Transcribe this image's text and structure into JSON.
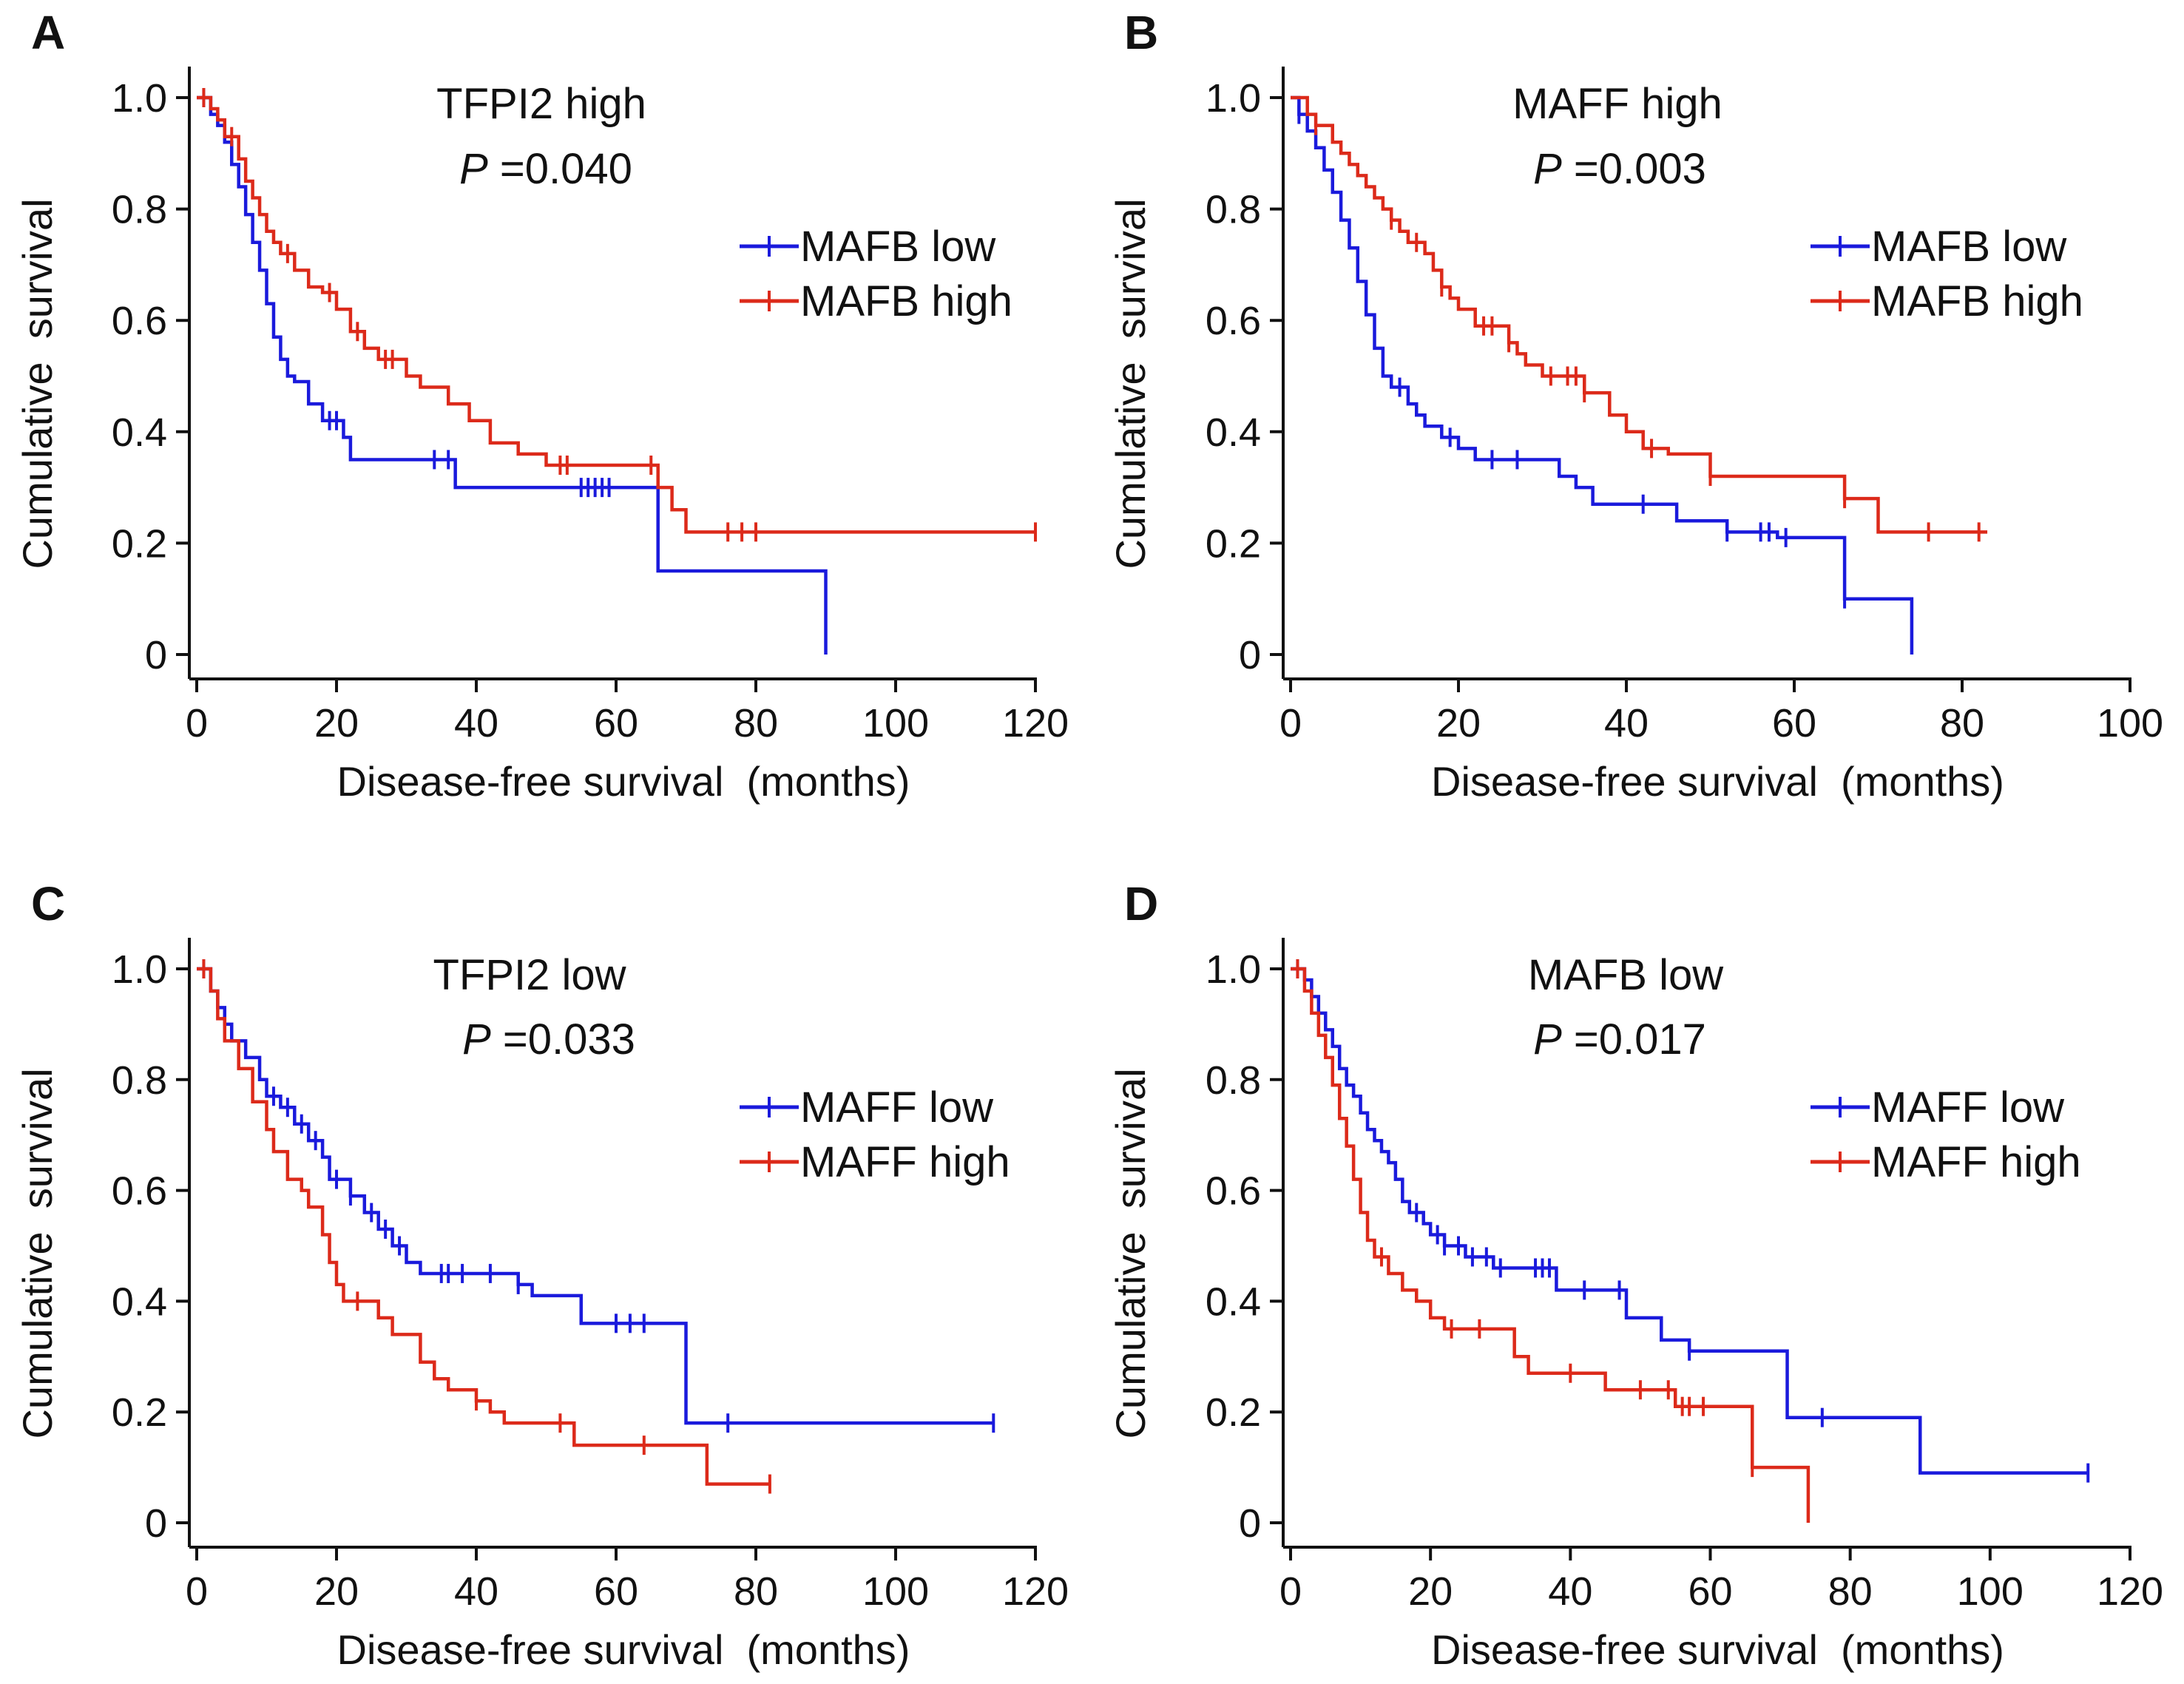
{
  "chart_data": [
    {
      "panel": "A",
      "type": "line",
      "subtype": "kaplan-meier",
      "title": "TFPI2 high",
      "p_label": "P",
      "p_value": "=0.040",
      "xlabel": "Disease-free survival  (months)",
      "ylabel": "Cumulative  survival",
      "xlim": [
        0,
        120
      ],
      "ylim": [
        0,
        1.0
      ],
      "xticks": [
        0,
        20,
        40,
        60,
        80,
        100,
        120
      ],
      "yticks": [
        0,
        0.2,
        0.4,
        0.6,
        0.8,
        1.0
      ],
      "ytick_labels": [
        "0",
        "0.2",
        "0.4",
        "0.6",
        "0.8",
        "1.0"
      ],
      "legend_position": "top-right",
      "series": [
        {
          "name": "MAFB low",
          "color": "#1a1adc",
          "steps": [
            [
              0,
              1.0
            ],
            [
              2,
              0.97
            ],
            [
              3,
              0.95
            ],
            [
              4,
              0.92
            ],
            [
              5,
              0.88
            ],
            [
              6,
              0.84
            ],
            [
              7,
              0.79
            ],
            [
              8,
              0.74
            ],
            [
              9,
              0.69
            ],
            [
              10,
              0.63
            ],
            [
              11,
              0.57
            ],
            [
              12,
              0.53
            ],
            [
              13,
              0.5
            ],
            [
              14,
              0.49
            ],
            [
              16,
              0.45
            ],
            [
              18,
              0.42
            ],
            [
              21,
              0.39
            ],
            [
              22,
              0.35
            ],
            [
              37,
              0.3
            ],
            [
              66,
              0.15
            ],
            [
              90,
              0.0
            ]
          ],
          "end": 90,
          "censor": [
            1,
            19,
            20,
            34,
            36,
            55,
            56,
            57,
            58,
            59
          ]
        },
        {
          "name": "MAFB high",
          "color": "#dc2a1a",
          "steps": [
            [
              0,
              1.0
            ],
            [
              2,
              0.98
            ],
            [
              3,
              0.96
            ],
            [
              4,
              0.93
            ],
            [
              6,
              0.89
            ],
            [
              7,
              0.85
            ],
            [
              8,
              0.82
            ],
            [
              9,
              0.79
            ],
            [
              10,
              0.76
            ],
            [
              11,
              0.74
            ],
            [
              12,
              0.72
            ],
            [
              14,
              0.69
            ],
            [
              16,
              0.66
            ],
            [
              18,
              0.65
            ],
            [
              20,
              0.62
            ],
            [
              22,
              0.58
            ],
            [
              24,
              0.55
            ],
            [
              26,
              0.53
            ],
            [
              30,
              0.5
            ],
            [
              32,
              0.48
            ],
            [
              36,
              0.45
            ],
            [
              39,
              0.42
            ],
            [
              42,
              0.38
            ],
            [
              46,
              0.36
            ],
            [
              50,
              0.34
            ],
            [
              66,
              0.3
            ],
            [
              68,
              0.26
            ],
            [
              70,
              0.22
            ]
          ],
          "end": 120,
          "censor": [
            1,
            5,
            13,
            19,
            23,
            27,
            28,
            52,
            53,
            65,
            76,
            78,
            80,
            120
          ]
        }
      ]
    },
    {
      "panel": "B",
      "type": "line",
      "subtype": "kaplan-meier",
      "title": "MAFF high",
      "p_label": "P",
      "p_value": "=0.003",
      "xlabel": "Disease-free survival  (months)",
      "ylabel": "Cumulative  survival",
      "xlim": [
        0,
        100
      ],
      "ylim": [
        0,
        1.0
      ],
      "xticks": [
        0,
        20,
        40,
        60,
        80,
        100
      ],
      "yticks": [
        0,
        0.2,
        0.4,
        0.6,
        0.8,
        1.0
      ],
      "ytick_labels": [
        "0",
        "0.2",
        "0.4",
        "0.6",
        "0.8",
        "1.0"
      ],
      "legend_position": "top-right",
      "series": [
        {
          "name": "MAFB low",
          "color": "#1a1adc",
          "steps": [
            [
              0,
              1.0
            ],
            [
              1,
              0.97
            ],
            [
              2,
              0.94
            ],
            [
              3,
              0.91
            ],
            [
              4,
              0.87
            ],
            [
              5,
              0.83
            ],
            [
              6,
              0.78
            ],
            [
              7,
              0.73
            ],
            [
              8,
              0.67
            ],
            [
              9,
              0.61
            ],
            [
              10,
              0.55
            ],
            [
              11,
              0.5
            ],
            [
              12,
              0.48
            ],
            [
              14,
              0.45
            ],
            [
              15,
              0.43
            ],
            [
              16,
              0.41
            ],
            [
              18,
              0.39
            ],
            [
              20,
              0.37
            ],
            [
              22,
              0.35
            ],
            [
              32,
              0.32
            ],
            [
              34,
              0.3
            ],
            [
              36,
              0.27
            ],
            [
              46,
              0.24
            ],
            [
              52,
              0.22
            ],
            [
              58,
              0.21
            ],
            [
              66,
              0.1
            ],
            [
              74,
              0.0
            ]
          ],
          "end": 74,
          "censor": [
            1,
            13,
            19,
            24,
            27,
            42,
            52,
            56,
            57,
            59,
            66
          ]
        },
        {
          "name": "MAFB high",
          "color": "#dc2a1a",
          "steps": [
            [
              0,
              1.0
            ],
            [
              2,
              0.97
            ],
            [
              3,
              0.95
            ],
            [
              5,
              0.92
            ],
            [
              6,
              0.9
            ],
            [
              7,
              0.88
            ],
            [
              8,
              0.86
            ],
            [
              9,
              0.84
            ],
            [
              10,
              0.82
            ],
            [
              11,
              0.8
            ],
            [
              12,
              0.78
            ],
            [
              13,
              0.76
            ],
            [
              14,
              0.74
            ],
            [
              16,
              0.72
            ],
            [
              17,
              0.69
            ],
            [
              18,
              0.66
            ],
            [
              19,
              0.64
            ],
            [
              20,
              0.62
            ],
            [
              22,
              0.59
            ],
            [
              26,
              0.56
            ],
            [
              27,
              0.54
            ],
            [
              28,
              0.52
            ],
            [
              30,
              0.5
            ],
            [
              35,
              0.47
            ],
            [
              38,
              0.43
            ],
            [
              40,
              0.4
            ],
            [
              42,
              0.37
            ],
            [
              45,
              0.36
            ],
            [
              50,
              0.32
            ],
            [
              66,
              0.28
            ],
            [
              70,
              0.22
            ]
          ],
          "end": 83,
          "censor": [
            3,
            12,
            15,
            18,
            23,
            24,
            26,
            31,
            33,
            34,
            35,
            43,
            50,
            66,
            76,
            82
          ]
        }
      ]
    },
    {
      "panel": "C",
      "type": "line",
      "subtype": "kaplan-meier",
      "title": "TFPI2 low",
      "p_label": "P",
      "p_value": "=0.033",
      "xlabel": "Disease-free survival  (months)",
      "ylabel": "Cumulative  survival",
      "xlim": [
        0,
        120
      ],
      "ylim": [
        0,
        1.0
      ],
      "xticks": [
        0,
        20,
        40,
        60,
        80,
        100,
        120
      ],
      "yticks": [
        0,
        0.2,
        0.4,
        0.6,
        0.8,
        1.0
      ],
      "ytick_labels": [
        "0",
        "0.2",
        "0.4",
        "0.6",
        "0.8",
        "1.0"
      ],
      "legend_position": "top-right",
      "series": [
        {
          "name": "MAFF low",
          "color": "#1a1adc",
          "steps": [
            [
              0,
              1.0
            ],
            [
              2,
              0.96
            ],
            [
              3,
              0.93
            ],
            [
              4,
              0.9
            ],
            [
              5,
              0.87
            ],
            [
              7,
              0.84
            ],
            [
              9,
              0.8
            ],
            [
              10,
              0.77
            ],
            [
              12,
              0.75
            ],
            [
              14,
              0.72
            ],
            [
              16,
              0.69
            ],
            [
              18,
              0.66
            ],
            [
              19,
              0.62
            ],
            [
              21,
              0.62
            ],
            [
              22,
              0.59
            ],
            [
              24,
              0.56
            ],
            [
              26,
              0.53
            ],
            [
              28,
              0.5
            ],
            [
              30,
              0.47
            ],
            [
              32,
              0.45
            ],
            [
              46,
              0.43
            ],
            [
              48,
              0.41
            ],
            [
              55,
              0.36
            ],
            [
              70,
              0.18
            ]
          ],
          "end": 114,
          "censor": [
            1,
            11,
            13,
            15,
            17,
            20,
            22,
            25,
            27,
            29,
            35,
            36,
            38,
            42,
            46,
            60,
            62,
            64,
            76,
            114
          ]
        },
        {
          "name": "MAFF high",
          "color": "#dc2a1a",
          "steps": [
            [
              0,
              1.0
            ],
            [
              2,
              0.96
            ],
            [
              3,
              0.91
            ],
            [
              4,
              0.87
            ],
            [
              6,
              0.82
            ],
            [
              8,
              0.76
            ],
            [
              10,
              0.71
            ],
            [
              11,
              0.67
            ],
            [
              13,
              0.62
            ],
            [
              15,
              0.6
            ],
            [
              16,
              0.57
            ],
            [
              18,
              0.52
            ],
            [
              19,
              0.47
            ],
            [
              20,
              0.43
            ],
            [
              21,
              0.4
            ],
            [
              26,
              0.37
            ],
            [
              28,
              0.34
            ],
            [
              32,
              0.29
            ],
            [
              34,
              0.26
            ],
            [
              36,
              0.24
            ],
            [
              40,
              0.22
            ],
            [
              42,
              0.2
            ],
            [
              44,
              0.18
            ],
            [
              54,
              0.14
            ],
            [
              73,
              0.07
            ]
          ],
          "end": 82,
          "censor": [
            1,
            23,
            40,
            52,
            64,
            82
          ]
        }
      ]
    },
    {
      "panel": "D",
      "type": "line",
      "subtype": "kaplan-meier",
      "title": "MAFB low",
      "p_label": "P",
      "p_value": "=0.017",
      "xlabel": "Disease-free survival  (months)",
      "ylabel": "Cumulative  survival",
      "xlim": [
        0,
        120
      ],
      "ylim": [
        0,
        1.0
      ],
      "xticks": [
        0,
        20,
        40,
        60,
        80,
        100,
        120
      ],
      "yticks": [
        0,
        0.2,
        0.4,
        0.6,
        0.8,
        1.0
      ],
      "ytick_labels": [
        "0",
        "0.2",
        "0.4",
        "0.6",
        "0.8",
        "1.0"
      ],
      "legend_position": "top-right",
      "series": [
        {
          "name": "MAFF low",
          "color": "#1a1adc",
          "steps": [
            [
              0,
              1.0
            ],
            [
              2,
              0.98
            ],
            [
              3,
              0.95
            ],
            [
              4,
              0.92
            ],
            [
              5,
              0.89
            ],
            [
              6,
              0.86
            ],
            [
              7,
              0.82
            ],
            [
              8,
              0.79
            ],
            [
              9,
              0.77
            ],
            [
              10,
              0.74
            ],
            [
              11,
              0.71
            ],
            [
              12,
              0.69
            ],
            [
              13,
              0.67
            ],
            [
              14,
              0.65
            ],
            [
              15,
              0.62
            ],
            [
              16,
              0.58
            ],
            [
              17,
              0.56
            ],
            [
              19,
              0.54
            ],
            [
              20,
              0.52
            ],
            [
              22,
              0.5
            ],
            [
              25,
              0.48
            ],
            [
              29,
              0.46
            ],
            [
              38,
              0.42
            ],
            [
              48,
              0.37
            ],
            [
              53,
              0.33
            ],
            [
              57,
              0.31
            ],
            [
              71,
              0.19
            ],
            [
              90,
              0.09
            ]
          ],
          "end": 114,
          "censor": [
            1,
            18,
            21,
            22,
            24,
            26,
            28,
            30,
            35,
            36,
            37,
            42,
            47,
            57,
            76,
            114
          ]
        },
        {
          "name": "MAFF high",
          "color": "#dc2a1a",
          "steps": [
            [
              0,
              1.0
            ],
            [
              2,
              0.96
            ],
            [
              3,
              0.92
            ],
            [
              4,
              0.88
            ],
            [
              5,
              0.84
            ],
            [
              6,
              0.79
            ],
            [
              7,
              0.73
            ],
            [
              8,
              0.68
            ],
            [
              9,
              0.62
            ],
            [
              10,
              0.56
            ],
            [
              11,
              0.51
            ],
            [
              12,
              0.48
            ],
            [
              14,
              0.45
            ],
            [
              16,
              0.42
            ],
            [
              18,
              0.4
            ],
            [
              20,
              0.37
            ],
            [
              22,
              0.35
            ],
            [
              32,
              0.3
            ],
            [
              34,
              0.27
            ],
            [
              45,
              0.24
            ],
            [
              55,
              0.21
            ],
            [
              66,
              0.1
            ],
            [
              74,
              0.0
            ]
          ],
          "end": 74,
          "censor": [
            1,
            13,
            23,
            27,
            40,
            50,
            54,
            56,
            57,
            59,
            66
          ]
        }
      ]
    }
  ]
}
